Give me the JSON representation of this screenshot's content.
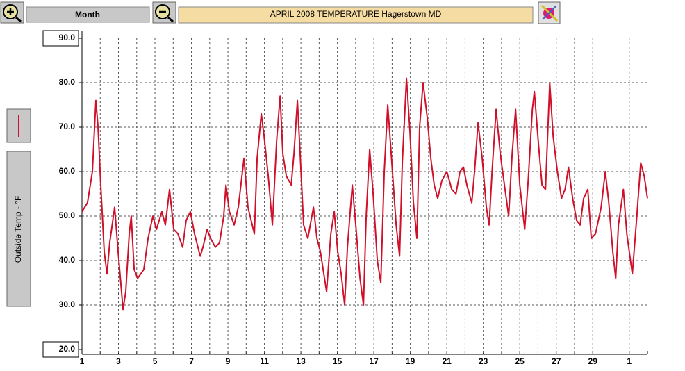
{
  "toolbar": {
    "range": "Month"
  },
  "chart_data": {
    "type": "line",
    "title": "APRIL 2008   TEMPERATURE  Hagerstown MD",
    "y_label": "Outside Temp - °F",
    "color": "#d0102a",
    "grid": true,
    "xlim": [
      1,
      32
    ],
    "ylim": [
      20,
      90
    ],
    "xticks": [
      1,
      3,
      5,
      7,
      9,
      11,
      13,
      15,
      17,
      19,
      21,
      23,
      25,
      27,
      29,
      {
        "value": 31,
        "label": "1"
      }
    ],
    "xminor": [
      2,
      4,
      6,
      8,
      10,
      12,
      14,
      16,
      18,
      20,
      22,
      24,
      26,
      28,
      30,
      32
    ],
    "yticks": [
      {
        "value": 20,
        "label": "20.0"
      },
      {
        "value": 30,
        "label": "30.0"
      },
      {
        "value": 40,
        "label": "40.0"
      },
      {
        "value": 50,
        "label": "50.0"
      },
      {
        "value": 60,
        "label": "60.0"
      },
      {
        "value": 70,
        "label": "70.0"
      },
      {
        "value": 80,
        "label": "80.0"
      },
      {
        "value": 90,
        "label": "90.0"
      }
    ],
    "x": [
      1.0,
      1.3,
      1.57,
      1.76,
      1.88,
      2.03,
      2.22,
      2.37,
      2.52,
      2.79,
      2.98,
      3.25,
      3.4,
      3.59,
      3.7,
      3.86,
      4.05,
      4.39,
      4.62,
      4.89,
      5.08,
      5.38,
      5.57,
      5.8,
      6.03,
      6.26,
      6.52,
      6.71,
      6.94,
      7.17,
      7.48,
      7.63,
      7.86,
      8.05,
      8.31,
      8.54,
      8.77,
      8.89,
      9.08,
      9.34,
      9.57,
      9.88,
      10.1,
      10.45,
      10.6,
      10.83,
      10.98,
      11.21,
      11.44,
      11.67,
      11.86,
      12.01,
      12.2,
      12.47,
      12.62,
      12.81,
      12.96,
      13.15,
      13.38,
      13.69,
      13.88,
      14.07,
      14.22,
      14.41,
      14.64,
      14.83,
      15.02,
      15.21,
      15.4,
      15.55,
      15.82,
      16.01,
      16.24,
      16.43,
      16.58,
      16.77,
      16.96,
      17.19,
      17.38,
      17.57,
      17.76,
      17.95,
      18.22,
      18.41,
      18.56,
      18.79,
      18.98,
      19.17,
      19.36,
      19.51,
      19.7,
      19.93,
      20.12,
      20.31,
      20.5,
      20.73,
      21.0,
      21.27,
      21.5,
      21.72,
      21.91,
      22.1,
      22.37,
      22.52,
      22.71,
      22.94,
      23.17,
      23.32,
      23.48,
      23.7,
      23.93,
      24.16,
      24.39,
      24.58,
      24.77,
      25.0,
      25.27,
      25.46,
      25.69,
      25.8,
      26.03,
      26.22,
      26.41,
      26.64,
      26.83,
      27.06,
      27.29,
      27.48,
      27.67,
      27.9,
      28.12,
      28.31,
      28.5,
      28.73,
      28.92,
      29.15,
      29.46,
      29.69,
      29.88,
      30.1,
      30.26,
      30.41,
      30.68,
      30.87,
      31.17,
      31.4,
      31.63,
      31.82,
      32.0
    ],
    "values": [
      51,
      53,
      60,
      76,
      70,
      57,
      42,
      37,
      44,
      52,
      42,
      29,
      33,
      46,
      50,
      38,
      36,
      38,
      45,
      50,
      47,
      51,
      48,
      56,
      47,
      46,
      43,
      49,
      51,
      46,
      41,
      43,
      47,
      45,
      43,
      44,
      50,
      57,
      51,
      48,
      52,
      63,
      52,
      46,
      63,
      73,
      68,
      59,
      48,
      67,
      77,
      64,
      59,
      57,
      64,
      76,
      64,
      48,
      45,
      52,
      45,
      42,
      38,
      33,
      46,
      51,
      42,
      37,
      30,
      43,
      57,
      48,
      36,
      30,
      50,
      65,
      55,
      40,
      35,
      60,
      75,
      64,
      48,
      41,
      62,
      81,
      69,
      53,
      45,
      70,
      80,
      72,
      63,
      57,
      54,
      58,
      60,
      56,
      55,
      60,
      61,
      57,
      53,
      60,
      71,
      63,
      52,
      48,
      60,
      74,
      64,
      57,
      50,
      64,
      74,
      57,
      47,
      58,
      74,
      78,
      66,
      57,
      56,
      80,
      68,
      60,
      54,
      56,
      61,
      54,
      49,
      48,
      54,
      56,
      45,
      46,
      52,
      60,
      53,
      42,
      36,
      48,
      56,
      46,
      37,
      49,
      62,
      59,
      54
    ]
  }
}
